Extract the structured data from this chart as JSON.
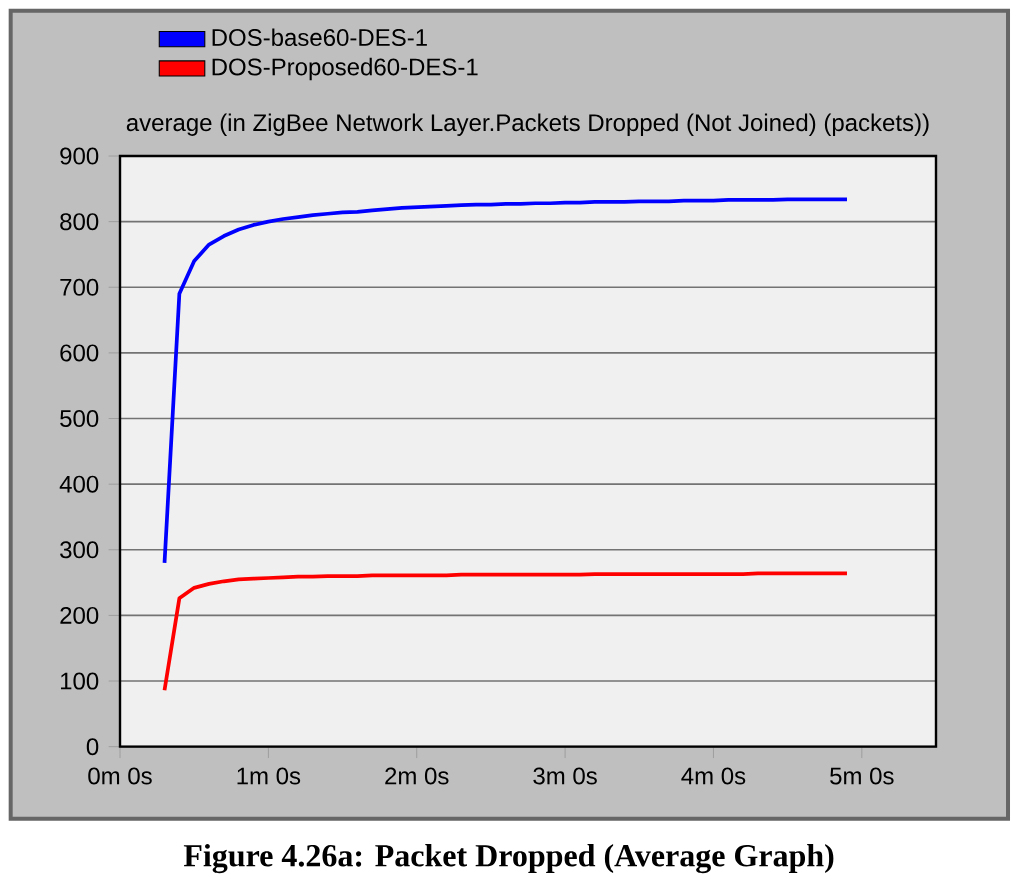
{
  "chart_data": {
    "type": "line",
    "title": "average (in ZigBee Network Layer.Packets Dropped (Not Joined) (packets))",
    "categories": [
      "0m 0s",
      null,
      null,
      null,
      null,
      null,
      null,
      null,
      null,
      null,
      "1m 0s",
      null,
      null,
      null,
      null,
      null,
      null,
      null,
      null,
      null,
      "2m 0s",
      null,
      null,
      null,
      null,
      null,
      null,
      null,
      null,
      null,
      "3m 0s",
      null,
      null,
      null,
      null,
      null,
      null,
      null,
      null,
      null,
      "4m 0s",
      null,
      null,
      null,
      null,
      null,
      null,
      null,
      null,
      null,
      "5m 0s",
      null,
      null,
      null,
      null,
      null
    ],
    "ylim": [
      0,
      900
    ],
    "yticks": [
      0,
      100,
      200,
      300,
      400,
      500,
      600,
      700,
      800,
      900
    ],
    "grid": "y",
    "legend": "top left",
    "marker": "none",
    "line_style": "solid",
    "series": [
      {
        "name": "DOS-base60-DES-1",
        "color": "#0000ff",
        "values": [
          null,
          null,
          null,
          280,
          690,
          740,
          765,
          778,
          788,
          795,
          800,
          804,
          807,
          810,
          812,
          814,
          815,
          817,
          819,
          821,
          822,
          823,
          824,
          825,
          826,
          826,
          827,
          827,
          828,
          828,
          829,
          829,
          830,
          830,
          830,
          831,
          831,
          831,
          832,
          832,
          832,
          833,
          833,
          833,
          833,
          834,
          834,
          834,
          834,
          834,
          null,
          null,
          null,
          null,
          null,
          null
        ]
      },
      {
        "name": "DOS-Proposed60-DES-1",
        "color": "#ff0000",
        "values": [
          null,
          null,
          null,
          86,
          226,
          242,
          248,
          252,
          255,
          256,
          257,
          258,
          259,
          259,
          260,
          260,
          260,
          261,
          261,
          261,
          261,
          261,
          261,
          262,
          262,
          262,
          262,
          262,
          262,
          262,
          262,
          262,
          263,
          263,
          263,
          263,
          263,
          263,
          263,
          263,
          263,
          263,
          263,
          264,
          264,
          264,
          264,
          264,
          264,
          264,
          null,
          null,
          null,
          null,
          null,
          null
        ]
      }
    ],
    "annotations": [
      "Figure 4.26a: Packet Dropped (Average Graph)"
    ]
  }
}
